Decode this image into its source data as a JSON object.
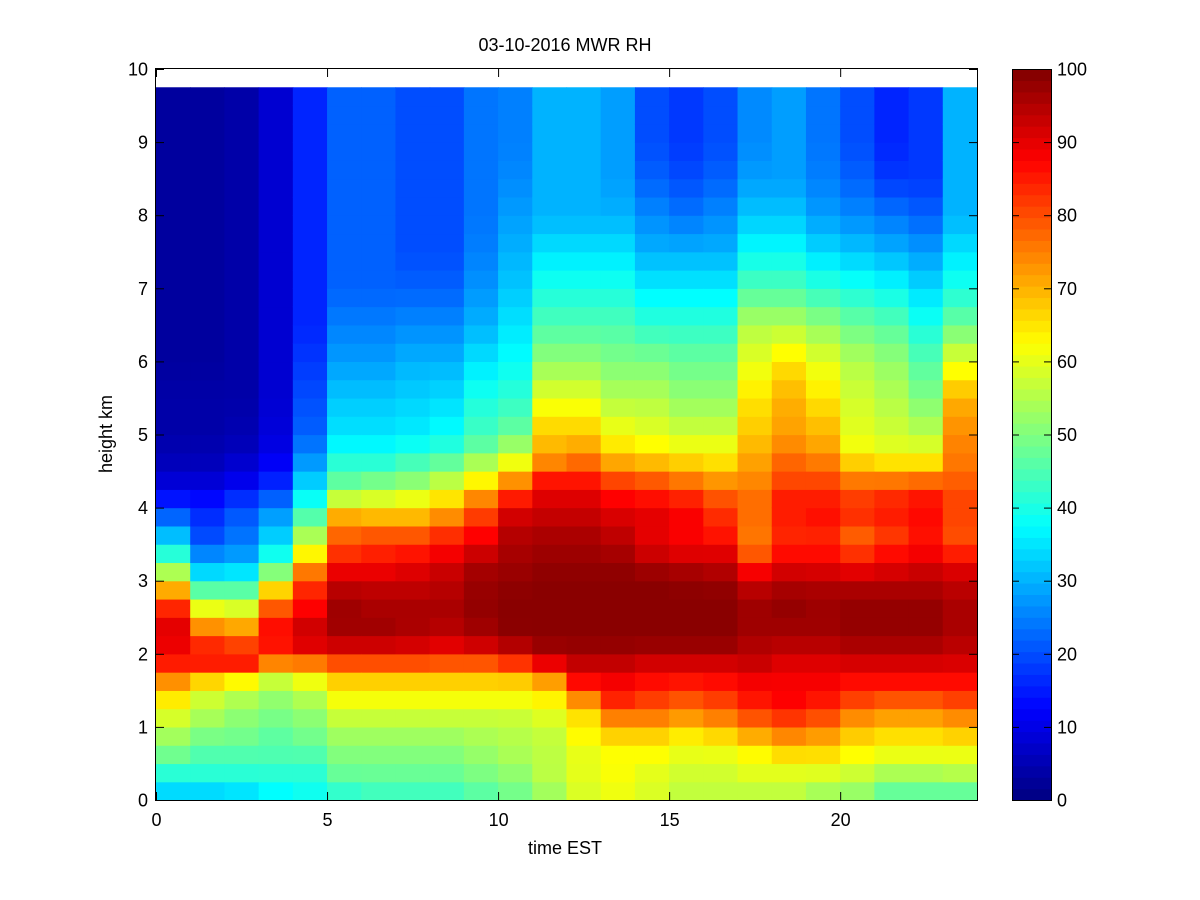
{
  "chart_data": {
    "type": "heatmap",
    "title": "03-10-2016 MWR RH",
    "xlabel": "time EST",
    "ylabel": "height km",
    "xlim": [
      0,
      24
    ],
    "ylim": [
      0,
      10
    ],
    "xticks": [
      0,
      5,
      10,
      15,
      20
    ],
    "yticks": [
      0,
      1,
      2,
      3,
      4,
      5,
      6,
      7,
      8,
      9,
      10
    ],
    "x_cell_width": 1,
    "x_centers": [
      0.5,
      1.5,
      2.5,
      3.5,
      4.5,
      5.5,
      6.5,
      7.5,
      8.5,
      9.5,
      10.5,
      11.5,
      12.5,
      13.5,
      14.5,
      15.5,
      16.5,
      17.5,
      18.5,
      19.5,
      20.5,
      21.5,
      22.5,
      23.5
    ],
    "height_profile_km": [
      0.05,
      0.2,
      0.4,
      0.6,
      0.8,
      1.0,
      1.2,
      1.4,
      1.6,
      1.8,
      2.0,
      2.2,
      2.4,
      2.6,
      2.8,
      3.0,
      3.2,
      3.4,
      3.6,
      3.8,
      4.0,
      4.2,
      4.4,
      4.6,
      4.8,
      5.0,
      5.5,
      6.0,
      6.5,
      7.0,
      7.5,
      8.0,
      8.5,
      9.0,
      9.75
    ],
    "rh_profiles": [
      [
        30,
        38,
        42,
        48,
        52,
        56,
        60,
        65,
        72,
        83,
        88,
        90,
        90,
        85,
        76,
        62,
        50,
        40,
        32,
        25,
        18,
        12,
        8,
        6,
        5,
        4,
        4,
        3,
        3,
        3,
        3,
        3,
        3,
        3,
        3
      ],
      [
        30,
        38,
        42,
        45,
        48,
        52,
        55,
        58,
        64,
        84,
        86,
        82,
        72,
        62,
        50,
        40,
        30,
        25,
        20,
        18,
        15,
        12,
        8,
        6,
        5,
        4,
        4,
        3,
        3,
        3,
        3,
        3,
        3,
        3,
        3
      ],
      [
        32,
        38,
        42,
        45,
        48,
        50,
        52,
        55,
        60,
        84,
        86,
        78,
        70,
        60,
        50,
        40,
        32,
        27,
        24,
        22,
        20,
        15,
        10,
        8,
        6,
        5,
        4,
        4,
        4,
        4,
        4,
        4,
        4,
        4,
        4
      ],
      [
        35,
        40,
        42,
        45,
        46,
        48,
        50,
        52,
        55,
        70,
        82,
        88,
        86,
        80,
        72,
        58,
        46,
        38,
        33,
        30,
        25,
        20,
        15,
        12,
        10,
        9,
        8,
        8,
        8,
        8,
        8,
        8,
        8,
        8,
        8
      ],
      [
        38,
        40,
        42,
        45,
        48,
        50,
        52,
        55,
        60,
        68,
        88,
        92,
        92,
        88,
        85,
        82,
        72,
        62,
        55,
        48,
        42,
        36,
        32,
        28,
        25,
        22,
        20,
        18,
        16,
        16,
        16,
        16,
        16,
        16,
        16
      ],
      [
        40,
        45,
        48,
        50,
        52,
        55,
        58,
        62,
        66,
        75,
        88,
        95,
        97,
        97,
        96,
        92,
        88,
        82,
        78,
        74,
        65,
        52,
        46,
        42,
        38,
        35,
        32,
        28,
        25,
        22,
        22,
        22,
        22,
        22,
        22
      ],
      [
        42,
        46,
        48,
        50,
        52,
        55,
        58,
        62,
        66,
        75,
        88,
        95,
        97,
        96,
        95,
        92,
        88,
        84,
        80,
        72,
        65,
        55,
        48,
        42,
        38,
        35,
        32,
        28,
        25,
        22,
        22,
        22,
        22,
        22,
        22
      ],
      [
        42,
        46,
        48,
        50,
        52,
        55,
        58,
        62,
        66,
        75,
        88,
        94,
        96,
        96,
        95,
        92,
        90,
        85,
        80,
        72,
        65,
        58,
        50,
        45,
        40,
        36,
        33,
        30,
        26,
        22,
        20,
        20,
        20,
        20,
        20
      ],
      [
        42,
        46,
        48,
        50,
        52,
        55,
        58,
        62,
        66,
        75,
        86,
        93,
        95,
        96,
        95,
        94,
        92,
        88,
        84,
        76,
        70,
        62,
        55,
        48,
        42,
        38,
        34,
        30,
        26,
        22,
        20,
        20,
        20,
        20,
        20
      ],
      [
        45,
        48,
        50,
        52,
        54,
        55,
        58,
        62,
        66,
        75,
        86,
        96,
        97,
        98,
        98,
        97,
        96,
        92,
        88,
        84,
        78,
        72,
        62,
        55,
        48,
        44,
        40,
        35,
        30,
        27,
        25,
        24,
        24,
        24,
        24
      ],
      [
        48,
        50,
        52,
        54,
        55,
        56,
        58,
        62,
        66,
        78,
        90,
        98,
        99,
        99,
        99,
        98,
        97,
        96,
        95,
        93,
        90,
        82,
        72,
        62,
        55,
        48,
        42,
        38,
        35,
        32,
        30,
        28,
        26,
        25,
        25
      ],
      [
        52,
        55,
        56,
        56,
        56,
        58,
        60,
        64,
        70,
        86,
        95,
        99,
        99,
        99,
        99,
        99,
        98,
        97,
        96,
        94,
        92,
        90,
        85,
        75,
        70,
        68,
        60,
        52,
        45,
        40,
        35,
        30,
        30,
        30,
        30
      ],
      [
        58,
        60,
        60,
        60,
        62,
        64,
        66,
        75,
        86,
        92,
        96,
        99,
        99,
        99,
        99,
        99,
        98,
        97,
        96,
        94,
        92,
        90,
        85,
        78,
        72,
        68,
        60,
        52,
        45,
        40,
        35,
        30,
        30,
        30,
        30
      ],
      [
        60,
        62,
        62,
        62,
        65,
        70,
        78,
        85,
        88,
        92,
        96,
        99,
        99,
        99,
        99,
        99,
        98,
        96,
        94,
        92,
        90,
        86,
        80,
        72,
        66,
        62,
        55,
        50,
        45,
        40,
        35,
        30,
        28,
        28,
        28
      ],
      [
        58,
        60,
        60,
        62,
        65,
        70,
        78,
        82,
        86,
        90,
        95,
        99,
        99,
        99,
        99,
        99,
        96,
        92,
        90,
        90,
        90,
        84,
        78,
        70,
        64,
        60,
        55,
        50,
        42,
        36,
        30,
        26,
        22,
        20,
        20
      ],
      [
        55,
        58,
        58,
        60,
        62,
        68,
        75,
        80,
        85,
        90,
        95,
        99,
        99,
        99,
        99,
        98,
        95,
        90,
        88,
        88,
        88,
        82,
        75,
        68,
        62,
        58,
        52,
        48,
        42,
        36,
        30,
        24,
        20,
        18,
        18
      ],
      [
        55,
        58,
        58,
        60,
        64,
        70,
        78,
        82,
        86,
        90,
        95,
        99,
        99,
        99,
        99,
        97,
        94,
        90,
        86,
        84,
        82,
        78,
        72,
        66,
        62,
        58,
        52,
        48,
        42,
        36,
        30,
        26,
        22,
        20,
        20
      ],
      [
        55,
        58,
        60,
        62,
        68,
        75,
        82,
        86,
        88,
        92,
        94,
        96,
        97,
        97,
        96,
        92,
        86,
        78,
        76,
        76,
        78,
        76,
        74,
        72,
        70,
        68,
        65,
        60,
        55,
        45,
        38,
        32,
        28,
        26,
        26
      ],
      [
        55,
        58,
        60,
        65,
        72,
        78,
        85,
        88,
        88,
        90,
        92,
        96,
        97,
        98,
        97,
        95,
        90,
        86,
        84,
        84,
        86,
        84,
        80,
        78,
        75,
        72,
        70,
        65,
        55,
        45,
        38,
        32,
        28,
        28,
        28
      ],
      [
        52,
        56,
        60,
        65,
        70,
        76,
        82,
        86,
        88,
        90,
        92,
        96,
        97,
        97,
        97,
        94,
        90,
        86,
        84,
        86,
        86,
        84,
        80,
        76,
        72,
        70,
        65,
        60,
        52,
        42,
        34,
        28,
        25,
        24,
        24
      ],
      [
        50,
        55,
        58,
        62,
        66,
        70,
        76,
        82,
        86,
        90,
        94,
        97,
        98,
        98,
        97,
        94,
        88,
        82,
        78,
        82,
        84,
        80,
        75,
        68,
        62,
        60,
        58,
        55,
        48,
        40,
        32,
        26,
        22,
        20,
        20
      ],
      [
        45,
        50,
        55,
        60,
        64,
        68,
        74,
        80,
        86,
        90,
        94,
        97,
        98,
        98,
        97,
        94,
        90,
        86,
        82,
        84,
        86,
        82,
        75,
        66,
        60,
        58,
        55,
        52,
        46,
        38,
        30,
        24,
        18,
        16,
        16
      ],
      [
        45,
        50,
        55,
        60,
        64,
        68,
        74,
        80,
        86,
        90,
        94,
        97,
        98,
        98,
        97,
        94,
        92,
        88,
        86,
        86,
        88,
        84,
        76,
        66,
        60,
        56,
        50,
        46,
        40,
        34,
        28,
        22,
        18,
        18,
        18
      ],
      [
        45,
        50,
        56,
        60,
        65,
        70,
        76,
        82,
        86,
        90,
        93,
        95,
        96,
        96,
        95,
        93,
        90,
        84,
        80,
        80,
        82,
        80,
        78,
        76,
        75,
        74,
        70,
        60,
        48,
        40,
        35,
        30,
        30,
        30,
        30
      ]
    ],
    "colorbar": {
      "colormap": "jet",
      "range": [
        0,
        100
      ],
      "ticks": [
        0,
        10,
        20,
        30,
        40,
        50,
        60,
        70,
        80,
        90,
        100
      ]
    },
    "grid": false
  }
}
